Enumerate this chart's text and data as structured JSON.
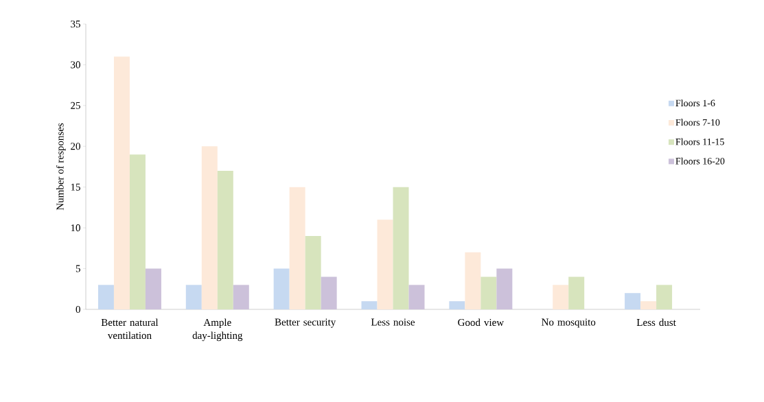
{
  "chart_data": {
    "type": "bar",
    "ylabel": "Number of responses",
    "categories": [
      "Better natural ventilation",
      "Ample day-lighting",
      "Better security",
      "Less noise",
      "Good view",
      "No mosquito",
      "Less dust"
    ],
    "series": [
      {
        "name": "Floors 1-6",
        "color": "#c6d9f1",
        "values": [
          3,
          3,
          5,
          1,
          1,
          0,
          2
        ]
      },
      {
        "name": "Floors 7-10",
        "color": "#fde9d9",
        "values": [
          31,
          20,
          15,
          11,
          7,
          3,
          1
        ]
      },
      {
        "name": "Floors 11-15",
        "color": "#d7e4bd",
        "values": [
          19,
          17,
          9,
          15,
          4,
          4,
          3
        ]
      },
      {
        "name": "Floors 16-20",
        "color": "#ccc1da",
        "values": [
          5,
          3,
          4,
          3,
          5,
          0,
          0
        ]
      }
    ],
    "ylim": [
      0,
      35
    ],
    "yticks": [
      0,
      5,
      10,
      15,
      20,
      25,
      30,
      35
    ],
    "grid": false,
    "legend": "right"
  }
}
